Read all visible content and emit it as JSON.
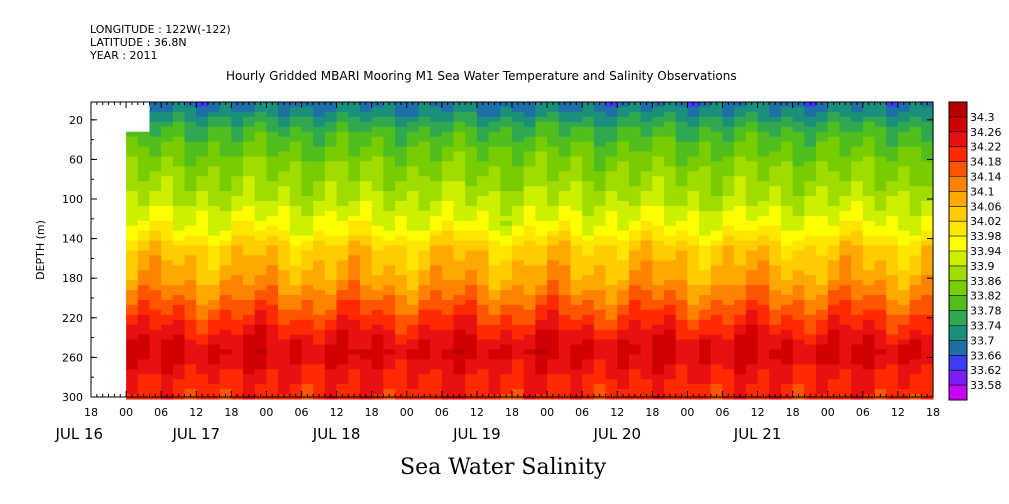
{
  "header": {
    "longitude": "LONGITUDE : 122W(-122)",
    "latitude": "LATITUDE : 36.8N",
    "year": "YEAR : 2011"
  },
  "chart_data": {
    "type": "heatmap",
    "title": "Hourly Gridded MBARI Mooring M1 Sea Water Temperature and Salinity Observations",
    "xlabel": "Sea Water Salinity",
    "ylabel": "DEPTH (m)",
    "x_hour_ticks": [
      "18",
      "00",
      "06",
      "12",
      "18",
      "00",
      "06",
      "12",
      "18",
      "00",
      "06",
      "12",
      "18",
      "00",
      "06",
      "12",
      "18",
      "00",
      "06",
      "12",
      "18",
      "00",
      "06",
      "12",
      "18"
    ],
    "x_day_labels": [
      "JUL 16",
      "JUL 17",
      "JUL 18",
      "JUL 19",
      "JUL 20",
      "JUL 21"
    ],
    "y_ticks": [
      20,
      60,
      100,
      140,
      180,
      220,
      260,
      300
    ],
    "ylim": [
      300,
      2
    ],
    "x_range_hours": [
      -6,
      138
    ],
    "data_start_hour": 0,
    "colorbar_levels": [
      "34.3",
      "34.26",
      "34.22",
      "34.18",
      "34.14",
      "34.1",
      "34.06",
      "34.02",
      "33.98",
      "33.94",
      "33.9",
      "33.86",
      "33.82",
      "33.78",
      "33.74",
      "33.7",
      "33.66",
      "33.62",
      "33.58"
    ],
    "colorbar_colors": [
      "#b80000",
      "#d20000",
      "#e81010",
      "#ff2a00",
      "#ff5500",
      "#ff8200",
      "#ffa800",
      "#ffcc00",
      "#ffe600",
      "#ffff00",
      "#ccf000",
      "#a0dc00",
      "#78cd00",
      "#4fbe1e",
      "#2fa850",
      "#1a907a",
      "#1e6fa6",
      "#3d3df5",
      "#7a1ef5",
      "#c800f5"
    ],
    "profile": [
      {
        "depth": 2,
        "sal": 33.68
      },
      {
        "depth": 15,
        "sal": 33.72
      },
      {
        "depth": 30,
        "sal": 33.78
      },
      {
        "depth": 60,
        "sal": 33.84
      },
      {
        "depth": 100,
        "sal": 33.9
      },
      {
        "depth": 130,
        "sal": 33.96
      },
      {
        "depth": 150,
        "sal": 34.04
      },
      {
        "depth": 180,
        "sal": 34.08
      },
      {
        "depth": 210,
        "sal": 34.16
      },
      {
        "depth": 240,
        "sal": 34.24
      },
      {
        "depth": 255,
        "sal": 34.27
      },
      {
        "depth": 280,
        "sal": 34.22
      },
      {
        "depth": 300,
        "sal": 34.2
      }
    ]
  }
}
